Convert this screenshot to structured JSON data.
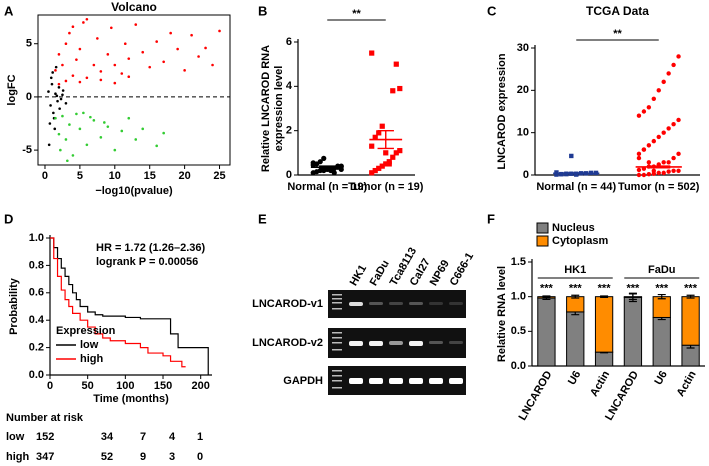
{
  "chart_data": [
    {
      "type": "scatter",
      "panel": "A",
      "title": "Volcano",
      "xlabel": "−log10(pvalue)",
      "ylabel": "logFC",
      "xlim": [
        -1,
        26.5
      ],
      "ylim": [
        -6.4,
        7.7
      ],
      "xticks": [
        0,
        5,
        10,
        15,
        20,
        25
      ],
      "yticks": [
        -5,
        0,
        5
      ],
      "reference_line": 0,
      "series": [
        {
          "color": "#000000",
          "x": [
            0.5,
            0.8,
            1,
            1.2,
            1.5,
            1.8,
            2,
            2.3,
            2.6,
            3,
            0.7,
            1.1,
            1.4,
            1.7,
            2.1,
            0.9,
            1.3,
            2.5,
            0.6,
            1.6
          ],
          "values": [
            0.5,
            -0.8,
            1.2,
            -1.5,
            0.3,
            -0.4,
            0.9,
            -0.2,
            0.6,
            -0.6,
            -2.5,
            2.3,
            -3,
            0.1,
            -1.1,
            1.8,
            -2,
            0.2,
            -4.5,
            2.8
          ]
        },
        {
          "color": "#ff0000",
          "x": [
            1.5,
            2,
            2.5,
            3,
            3.5,
            4,
            4.5,
            5,
            5.5,
            6,
            7,
            7.5,
            8,
            9,
            9.5,
            10,
            11,
            11.5,
            12,
            13,
            14,
            15,
            16,
            17,
            18,
            19,
            20,
            21,
            22,
            23,
            24,
            25,
            3,
            5,
            8,
            12,
            6,
            10,
            4,
            2
          ],
          "values": [
            2.5,
            4,
            3,
            5,
            6,
            2,
            3.5,
            4.5,
            7,
            1.8,
            3,
            5.5,
            2.4,
            4,
            6.5,
            3,
            2.2,
            5,
            3.6,
            6.8,
            4.2,
            2.8,
            5.2,
            3.3,
            6,
            4.5,
            2.5,
            5.8,
            3.8,
            4.6,
            3,
            6.2,
            1.5,
            1.4,
            1.6,
            1.9,
            7.3,
            1.3,
            6.6,
            1.2
          ]
        },
        {
          "color": "#33cc33",
          "x": [
            1.5,
            2,
            2.5,
            3,
            3.5,
            4,
            5,
            5.5,
            6,
            7,
            8,
            9,
            10,
            11,
            12,
            13,
            14,
            16,
            17,
            4.5,
            6.5,
            2.2,
            3.2,
            8.5
          ],
          "values": [
            -2,
            -3.5,
            -1.8,
            -4,
            -2.6,
            -5.5,
            -3,
            -1.5,
            -4.5,
            -2.2,
            -3.8,
            -2.8,
            -5,
            -3.2,
            -2,
            -4,
            -3,
            -4.6,
            -3.4,
            -1.6,
            -1.9,
            -5,
            -6,
            -2.4
          ]
        }
      ]
    },
    {
      "type": "dotplot",
      "panel": "B",
      "ylabel": [
        "Relative LNCAROD RNA",
        "expression level"
      ],
      "categories": [
        "Normal (n = 19)",
        "Tumor (n = 19)"
      ],
      "colors": [
        "#000000",
        "#ff0000"
      ],
      "markers": [
        "circle",
        "square"
      ],
      "values": [
        [
          0.1,
          0.15,
          0.2,
          0.2,
          0.25,
          0.3,
          0.3,
          0.35,
          0.4,
          0.45,
          0.5,
          0.6,
          0.75,
          0.3,
          0.2,
          0.1,
          0.4,
          0.25,
          0.55
        ],
        [
          0.1,
          0.2,
          0.3,
          0.4,
          0.5,
          0.6,
          0.8,
          1,
          1.1,
          1.3,
          1.7,
          1.9,
          2.2,
          1,
          0.5,
          3.8,
          5,
          3.9,
          5.5
        ]
      ],
      "means": [
        0.35,
        1.6
      ],
      "sems": [
        0.05,
        0.4
      ],
      "ylim": [
        0,
        6
      ],
      "yticks": [
        0,
        2,
        4,
        6
      ],
      "significance": "**"
    },
    {
      "type": "dotplot",
      "panel": "C",
      "title": "TCGA Data",
      "ylabel": "LNCAROD expression",
      "categories": [
        "Normal (n = 44)",
        "Tumor (n = 502)"
      ],
      "colors": [
        "#1f3a93",
        "#ff0000"
      ],
      "markers": [
        "square",
        "circle"
      ],
      "values": [
        [
          0.1,
          0.2,
          0.2,
          0.3,
          0.3,
          0.4,
          0.4,
          0.5,
          0.5,
          0.6,
          0.2,
          0.3,
          4.5,
          0.1
        ],
        [
          0,
          0,
          0.2,
          0.3,
          0.5,
          0.5,
          0.8,
          1,
          1,
          1.2,
          1.5,
          2,
          2,
          2.5,
          3,
          3,
          4,
          5,
          5,
          6,
          7,
          8,
          9,
          10,
          11,
          12,
          13,
          14,
          15,
          16,
          18,
          20,
          22,
          24,
          26,
          28,
          4,
          6,
          3,
          1
        ]
      ],
      "means": [
        0.4,
        1.9
      ],
      "sems": [
        0.1,
        0.2
      ],
      "ylim": [
        0,
        30
      ],
      "yticks": [
        0,
        10,
        20,
        30
      ],
      "significance": "**"
    },
    {
      "type": "survival",
      "panel": "D",
      "ylabel": "Probability",
      "xlabel": "Time (months)",
      "xlim": [
        0,
        215
      ],
      "ylim": [
        0,
        1
      ],
      "xticks": [
        0,
        50,
        100,
        150,
        200
      ],
      "yticks": [
        {
          "value": 0,
          "label": "0.0"
        },
        0.2,
        0.4,
        0.6,
        0.8,
        {
          "value": 1,
          "label": "1.0"
        }
      ],
      "annotations": [
        "HR = 1.72 (1.26–2.36)",
        "logrank P = 0.00056"
      ],
      "legend_title": "Expression",
      "series": [
        {
          "name": "low",
          "color": "#000000",
          "x": [
            0,
            5,
            10,
            15,
            20,
            25,
            30,
            35,
            40,
            50,
            60,
            70,
            100,
            120,
            150,
            160,
            170,
            210
          ],
          "values": [
            1,
            0.93,
            0.85,
            0.78,
            0.72,
            0.66,
            0.6,
            0.55,
            0.5,
            0.46,
            0.44,
            0.43,
            0.42,
            0.41,
            0.41,
            0.3,
            0.2,
            0
          ]
        },
        {
          "name": "high",
          "color": "#ff0000",
          "x": [
            0,
            5,
            10,
            15,
            20,
            25,
            30,
            40,
            50,
            60,
            70,
            80,
            100,
            120,
            130,
            150,
            160,
            175,
            180
          ],
          "values": [
            1,
            0.85,
            0.72,
            0.62,
            0.55,
            0.5,
            0.45,
            0.4,
            0.35,
            0.3,
            0.27,
            0.25,
            0.23,
            0.2,
            0.16,
            0.14,
            0.1,
            0.06,
            0.06
          ]
        }
      ],
      "risk_table": {
        "title": "Number at risk",
        "rows": [
          {
            "name": "low",
            "color": "#000000",
            "counts": [
              152,
              34,
              7,
              4,
              1
            ]
          },
          {
            "name": "high",
            "color": "#ff0000",
            "counts": [
              347,
              52,
              9,
              3,
              0
            ]
          }
        ]
      }
    },
    {
      "type": "bar",
      "panel": "F",
      "stacked": true,
      "ylabel": "Relative RNA level",
      "categories": [
        "LNCAROD",
        "U6",
        "Actin",
        "LNCAROD",
        "U6",
        "Actin"
      ],
      "groups": [
        "HK1",
        "FaDu"
      ],
      "series": [
        {
          "name": "Nucleus",
          "color": "#808080",
          "values": [
            0.98,
            0.78,
            0.2,
            0.99,
            0.7,
            0.3
          ],
          "errors": [
            0.02,
            0.04,
            0.01,
            0.06,
            0.03,
            0.04
          ]
        },
        {
          "name": "Cytoplasm",
          "color": "#ff8c00",
          "values": [
            0.02,
            0.22,
            0.8,
            0.01,
            0.3,
            0.7
          ],
          "errors": [
            0.01,
            0.02,
            0.01,
            0.04,
            0.03,
            0.02
          ]
        }
      ],
      "annotations": [
        "***",
        "***",
        "***",
        "***",
        "***",
        "***"
      ],
      "ylim": [
        0,
        1.5
      ],
      "yticks": [
        {
          "value": 0,
          "label": "0.0"
        },
        0.5,
        {
          "value": 1,
          "label": "1.0"
        },
        1.5
      ]
    }
  ],
  "gel": {
    "panel": "E",
    "lanes": [
      "HK1",
      "FaDu",
      "Tca8113",
      "Cal27",
      "NP69",
      "C666-1"
    ],
    "rows": [
      "LNCAROD-v1",
      "LNCAROD-v2",
      "GAPDH"
    ]
  }
}
